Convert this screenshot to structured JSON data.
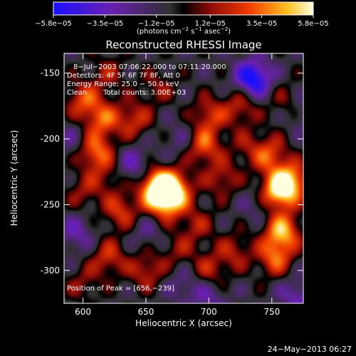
{
  "chart_data": {
    "type": "heatmap",
    "title": "Reconstructed RHESSI Image",
    "xlabel": "Heliocentric X (arcsec)",
    "ylabel": "Heliocentric Y (arcsec)",
    "xlim": [
      585,
      775
    ],
    "ylim": [
      -325,
      -135
    ],
    "x_ticks": [
      600,
      650,
      700,
      750
    ],
    "y_ticks": [
      -150,
      -200,
      -250,
      -300
    ],
    "x_tick_labels": [
      "600",
      "650",
      "700",
      "750"
    ],
    "y_tick_labels": [
      "-150",
      "-200",
      "-250",
      "-300"
    ],
    "colorbar": {
      "range": [
        -5.8e-05,
        5.8e-05
      ],
      "tick_values": [
        -5.8e-05,
        -3.5e-05,
        -1.2e-05,
        1.2e-05,
        3.5e-05,
        5.8e-05
      ],
      "tick_labels": [
        "−5.8e−05",
        "−3.5e−05",
        "−1.2e−05",
        "1.2e−05",
        "3.5e−05",
        "5.8e−05"
      ],
      "unit_text": "(photons cm",
      "unit_exp1": "−2",
      "unit_mid": " s",
      "unit_exp2": "−1",
      "unit_tail": " asec",
      "unit_exp3": "−2",
      "unit_close": ")"
    },
    "annotations": [
      "8−Jul−2003 07:06:22.000 to 07:11:20.000",
      "Detectors: 4F 5F 6F 7F 8F, Att 0",
      "Energy Range: 25.0 − 50.0 keV",
      "Clean",
      "Total counts: 3.00E+03",
      "Position of Peak = [656,−239]"
    ],
    "peak_position": [
      656,
      -239
    ],
    "sources": [
      {
        "x": 658,
        "y": -236,
        "v": 5.8e-05
      },
      {
        "x": 665,
        "y": -247,
        "v": 4.8e-05
      },
      {
        "x": 672,
        "y": -238,
        "v": 5e-05
      },
      {
        "x": 754,
        "y": -240,
        "v": 5.6e-05
      },
      {
        "x": 765,
        "y": -232,
        "v": 5e-05
      },
      {
        "x": 758,
        "y": -270,
        "v": 5.2e-05
      },
      {
        "x": 752,
        "y": -290,
        "v": 3.8e-05
      },
      {
        "x": 748,
        "y": -212,
        "v": 3.5e-05
      },
      {
        "x": 610,
        "y": -210,
        "v": 4.2e-05
      },
      {
        "x": 615,
        "y": -185,
        "v": 3.6e-05
      },
      {
        "x": 600,
        "y": -170,
        "v": 3.4e-05
      },
      {
        "x": 640,
        "y": -185,
        "v": 3e-05
      },
      {
        "x": 695,
        "y": -205,
        "v": 4e-05
      },
      {
        "x": 700,
        "y": -182,
        "v": 3e-05
      },
      {
        "x": 725,
        "y": -175,
        "v": 2.8e-05
      },
      {
        "x": 710,
        "y": -230,
        "v": 2.6e-05
      },
      {
        "x": 630,
        "y": -255,
        "v": 3.2e-05
      },
      {
        "x": 620,
        "y": -290,
        "v": 3e-05
      },
      {
        "x": 650,
        "y": -300,
        "v": 2.8e-05
      },
      {
        "x": 700,
        "y": -300,
        "v": 2.6e-05
      },
      {
        "x": 720,
        "y": -285,
        "v": 2.4e-05
      },
      {
        "x": 690,
        "y": -265,
        "v": 2.2e-05
      },
      {
        "x": 600,
        "y": -240,
        "v": 2e-05
      },
      {
        "x": 735,
        "y": -154,
        "v": -5.5e-05
      },
      {
        "x": 640,
        "y": -220,
        "v": -2.5e-05
      },
      {
        "x": 595,
        "y": -272,
        "v": -2.2e-05
      },
      {
        "x": 770,
        "y": -320,
        "v": -2.5e-05
      },
      {
        "x": 700,
        "y": -320,
        "v": -2e-05
      },
      {
        "x": 780,
        "y": -180,
        "v": -2e-05
      }
    ],
    "texture": [
      {
        "x": 620,
        "y": -150,
        "v": 2e-05
      },
      {
        "x": 660,
        "y": -160,
        "v": 1.8e-05
      },
      {
        "x": 680,
        "y": -200,
        "v": -1.5e-05
      },
      {
        "x": 600,
        "y": -310,
        "v": 1.8e-05
      },
      {
        "x": 680,
        "y": -310,
        "v": -1.6e-05
      },
      {
        "x": 740,
        "y": -250,
        "v": -1.5e-05
      },
      {
        "x": 730,
        "y": -205,
        "v": 1.6e-05
      },
      {
        "x": 760,
        "y": -170,
        "v": 1.5e-05
      },
      {
        "x": 590,
        "y": -200,
        "v": -1.4e-05
      },
      {
        "x": 650,
        "y": -270,
        "v": -1.4e-05
      },
      {
        "x": 675,
        "y": -285,
        "v": 1.8e-05
      },
      {
        "x": 620,
        "y": -230,
        "v": 1.6e-05
      }
    ]
  },
  "footer": {
    "timestamp": "24−May−2013 06:27"
  }
}
